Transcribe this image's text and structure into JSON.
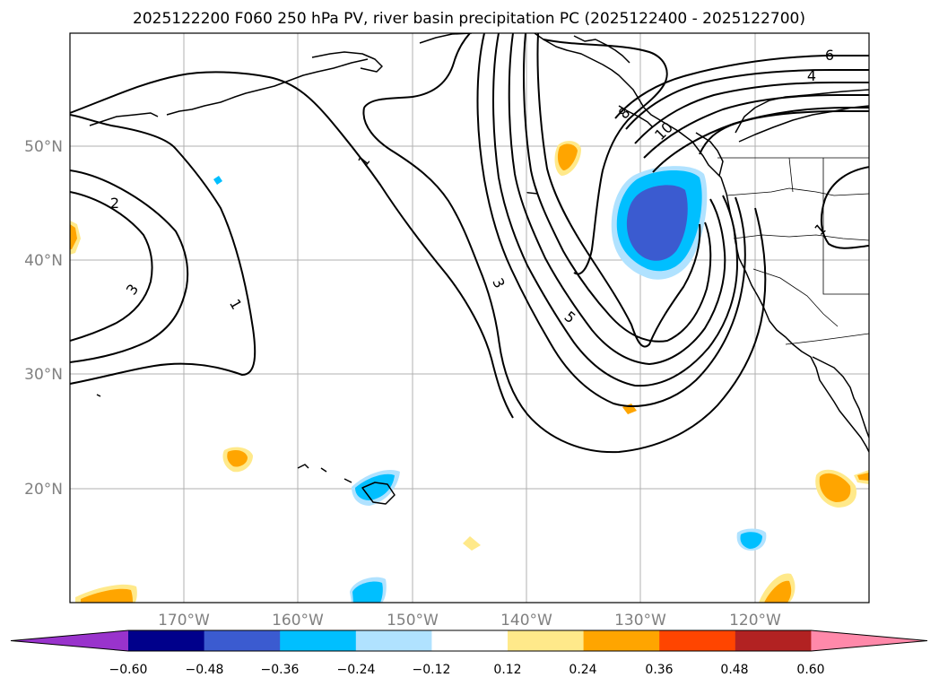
{
  "title": "2025122200 F060 250 hPa PV, river basin precipitation PC (2025122400 - 2025122700)",
  "lat_labels": [
    "50°N",
    "40°N",
    "30°N",
    "20°N"
  ],
  "lon_labels": [
    "170°W",
    "160°W",
    "150°W",
    "140°W",
    "130°W",
    "120°W"
  ],
  "contour_labels": [
    "1",
    "1",
    "1",
    "2",
    "3",
    "3",
    "5",
    "7",
    "4",
    "6",
    "8",
    "10"
  ],
  "colorbar": {
    "tick_labels": [
      "−0.60",
      "−0.48",
      "−0.36",
      "−0.24",
      "−0.12",
      "0.12",
      "0.24",
      "0.36",
      "0.48",
      "0.60"
    ],
    "colors": [
      "#9933cc",
      "#00008b",
      "#3b5bd0",
      "#00bfff",
      "#b0e2ff",
      "#ffffff",
      "#ffe98a",
      "#ffa500",
      "#ff4500",
      "#b22222",
      "#ff89aa"
    ]
  },
  "colors": {
    "neg_strong": "#3b5bd0",
    "neg_mid": "#00bfff",
    "neg_weak": "#b0e2ff",
    "pos_weak": "#ffe98a",
    "pos_mid": "#ffa500"
  }
}
